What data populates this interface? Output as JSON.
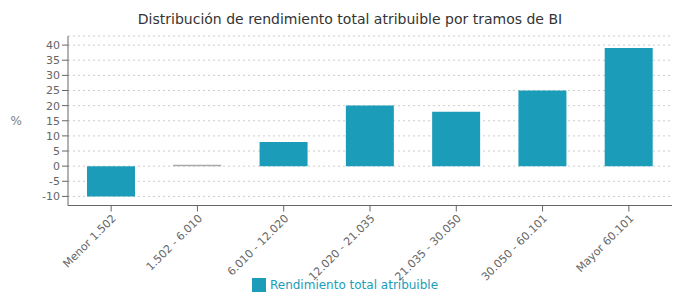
{
  "chart_data": {
    "type": "bar",
    "title": "Distribución de rendimiento total atribuible por tramos de BI",
    "categories": [
      "Menor 1.502",
      "1.502 - 6.010",
      "6.010 - 12.020",
      "12.020 - 21.035",
      "21.035 - 30.050",
      "30.050 - 60.101",
      "Mayor 60.101"
    ],
    "series": [
      {
        "name": "Rendimiento total atribuible",
        "color": "#1b9dba",
        "colors": [
          "#1b9dba",
          "#aaaaaa",
          "#1b9dba",
          "#1b9dba",
          "#1b9dba",
          "#1b9dba",
          "#1b9dba"
        ],
        "values": [
          -10.0,
          0.5,
          8.0,
          20.0,
          18.0,
          25.0,
          39.0
        ]
      }
    ],
    "ylabel": "%",
    "ylim": [
      -13,
      43
    ],
    "yticks": [
      -10,
      -5,
      0,
      5,
      10,
      15,
      20,
      25,
      30,
      35,
      40
    ],
    "grid": true,
    "legend": "bottom"
  }
}
